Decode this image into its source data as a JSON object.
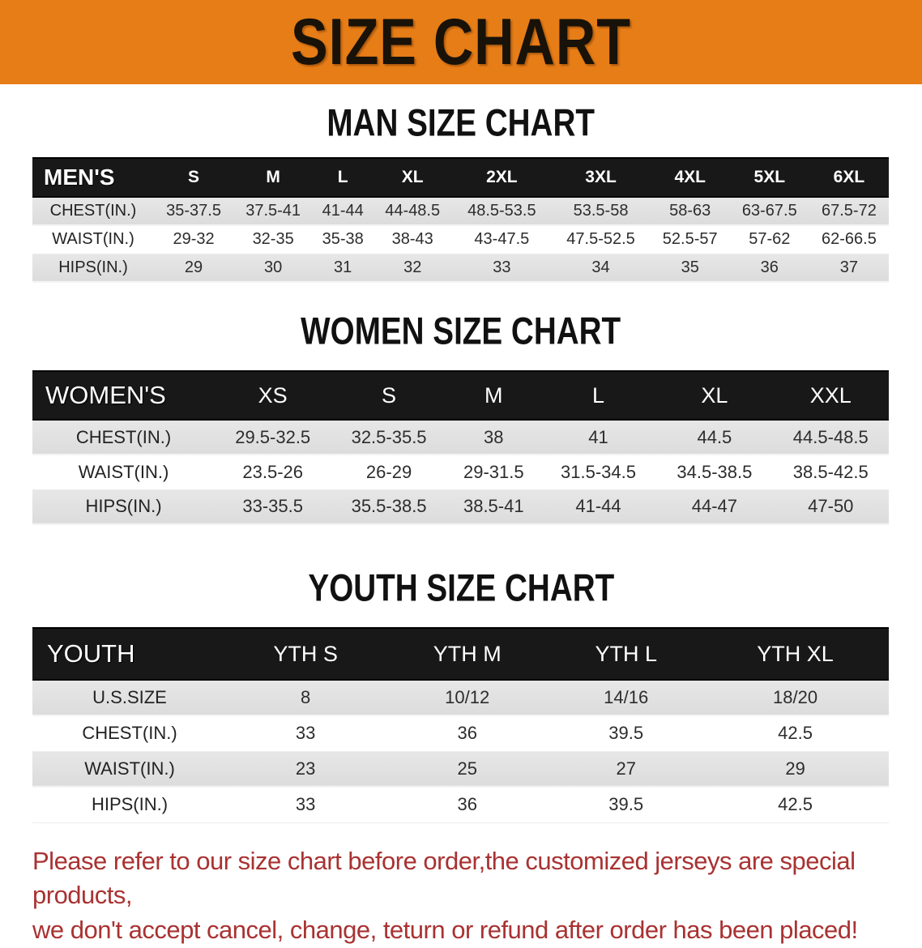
{
  "banner": {
    "title": "SIZE CHART",
    "bg_color": "#E67D17"
  },
  "men": {
    "heading": "MAN SIZE CHART",
    "label": "MEN'S",
    "sizes": [
      "S",
      "M",
      "L",
      "XL",
      "2XL",
      "3XL",
      "4XL",
      "5XL",
      "6XL"
    ],
    "rows": [
      {
        "label": "CHEST(IN.)",
        "values": [
          "35-37.5",
          "37.5-41",
          "41-44",
          "44-48.5",
          "48.5-53.5",
          "53.5-58",
          "58-63",
          "63-67.5",
          "67.5-72"
        ]
      },
      {
        "label": "WAIST(IN.)",
        "values": [
          "29-32",
          "32-35",
          "35-38",
          "38-43",
          "43-47.5",
          "47.5-52.5",
          "52.5-57",
          "57-62",
          "62-66.5"
        ]
      },
      {
        "label": "HIPS(IN.)",
        "values": [
          "29",
          "30",
          "31",
          "32",
          "33",
          "34",
          "35",
          "36",
          "37"
        ]
      }
    ]
  },
  "women": {
    "heading": "WOMEN SIZE CHART",
    "label": "WOMEN'S",
    "sizes": [
      "XS",
      "S",
      "M",
      "L",
      "XL",
      "XXL"
    ],
    "rows": [
      {
        "label": "CHEST(IN.)",
        "values": [
          "29.5-32.5",
          "32.5-35.5",
          "38",
          "41",
          "44.5",
          "44.5-48.5"
        ]
      },
      {
        "label": "WAIST(IN.)",
        "values": [
          "23.5-26",
          "26-29",
          "29-31.5",
          "31.5-34.5",
          "34.5-38.5",
          "38.5-42.5"
        ]
      },
      {
        "label": "HIPS(IN.)",
        "values": [
          "33-35.5",
          "35.5-38.5",
          "38.5-41",
          "41-44",
          "44-47",
          "47-50"
        ]
      }
    ]
  },
  "youth": {
    "heading": "YOUTH SIZE CHART",
    "label": "YOUTH",
    "sizes": [
      "YTH S",
      "YTH M",
      "YTH L",
      "YTH XL"
    ],
    "rows": [
      {
        "label": "U.S.SIZE",
        "values": [
          "8",
          "10/12",
          "14/16",
          "18/20"
        ]
      },
      {
        "label": "CHEST(IN.)",
        "values": [
          "33",
          "36",
          "39.5",
          "42.5"
        ]
      },
      {
        "label": "WAIST(IN.)",
        "values": [
          "23",
          "25",
          "27",
          "29"
        ]
      },
      {
        "label": "HIPS(IN.)",
        "values": [
          "33",
          "36",
          "39.5",
          "42.5"
        ]
      }
    ]
  },
  "disclaimer": {
    "line1": "Please refer to our size chart before order,the customized jerseys are special products,",
    "line2": "we don't accept cancel, change, teturn or refund after order has been placed!",
    "text_color": "#A93232"
  }
}
